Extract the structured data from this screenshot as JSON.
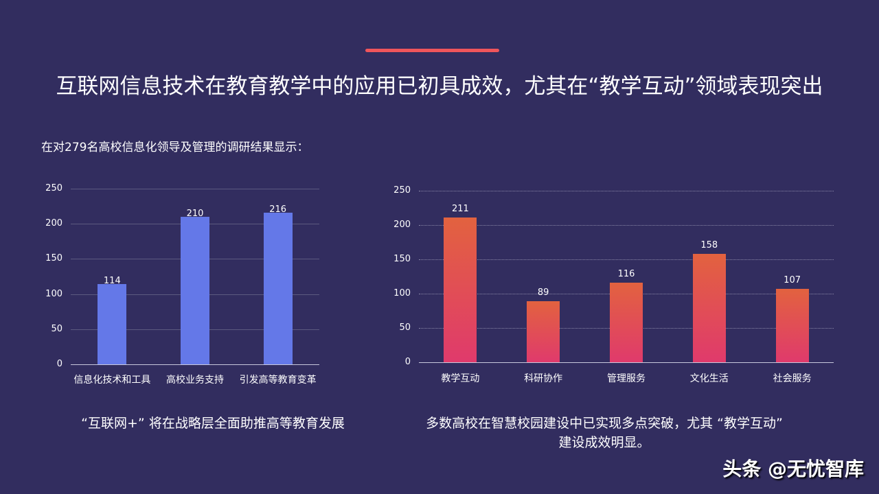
{
  "header": {
    "title": "互联网信息技术在教育教学中的应用已初具成效，尤其在“教学互动”领域表现突出",
    "subtitle": "在对279名高校信息化领导及管理的调研结果显示：",
    "accent_color": "#f0555b"
  },
  "chart_data": [
    {
      "type": "bar",
      "title": "",
      "categories": [
        "信息化技术和工具",
        "高校业务支持",
        "引发高等教育变革"
      ],
      "values": [
        114,
        210,
        216
      ],
      "xlabel": "",
      "ylabel": "",
      "ylim": [
        0,
        250
      ],
      "yticks": [
        "250",
        "200",
        "150",
        "100",
        "50",
        "0"
      ],
      "grid": true,
      "bar_color": "#6478e8"
    },
    {
      "type": "bar",
      "title": "",
      "categories": [
        "教学互动",
        "科研协作",
        "管理服务",
        "文化生活",
        "社会服务"
      ],
      "values": [
        211,
        89,
        116,
        158,
        107
      ],
      "xlabel": "",
      "ylabel": "",
      "ylim": [
        0,
        250
      ],
      "yticks": [
        "250",
        "200",
        "150",
        "100",
        "50",
        "0"
      ],
      "grid": true,
      "grid_style": "dotted",
      "bar_gradient": [
        "#e2623f",
        "#e03a6c"
      ]
    }
  ],
  "captions": {
    "left": "“互联网+” 将在战略层全面助推高等教育发展",
    "right_line1": "多数高校在智慧校园建设中已实现多点突破，尤其 “教学互动”",
    "right_line2": "建设成效明显。"
  },
  "watermark": "头条 @无忧智库"
}
